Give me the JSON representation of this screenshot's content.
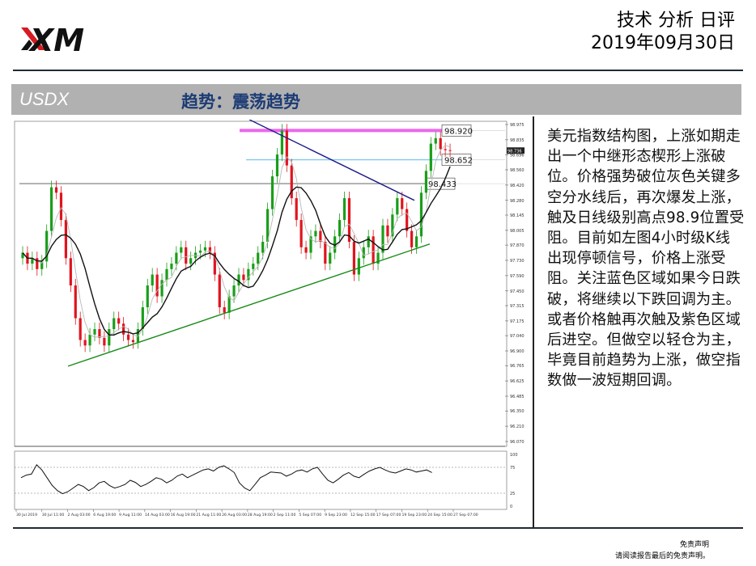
{
  "header": {
    "logo_text": "XM",
    "title": "技术 分析 日评",
    "date": "2019年09月30日"
  },
  "banner": {
    "symbol": "USDX",
    "trend": "趋势：震荡趋势"
  },
  "commentary": "美元指数结构图，上涨如期走出一个中继形态楔形上涨破位。价格强势破位灰色关键多空分水线后，再次爆发上涨，触及日线级别高点98.9位置受阻。目前如左图4小时级K线出现停顿信号，价格上涨受阻。关注蓝色区域如果今日跌破，将继续以下跌回调为主。或者价格触再次触及紫色区域后进空。但做空以轻仓为主，毕竟目前趋势为上涨，做空指数做一波短期回调。",
  "footer": {
    "disclaimer_title": "免责声明",
    "disclaimer_text": "请阅读报告最后的免责声明。"
  },
  "colors": {
    "bull": "#1a9e1a",
    "bear": "#e0141e",
    "trend_green": "#188a18",
    "trend_navy": "#1a1a8a",
    "resistance_magenta": "#ee66ee",
    "support_blue": "#7ec8ee",
    "key_gray": "#9a9a9a",
    "ma_black": "#111111",
    "banner_text": "#1d3c74"
  },
  "chart_data": {
    "type": "candlestick",
    "instrument": "USDX",
    "timeframe": "H4",
    "price_axis_ticks": [
      "98.975",
      "98.835",
      "98.696",
      "98.560",
      "98.420",
      "98.280",
      "98.145",
      "98.005",
      "97.870",
      "97.730",
      "97.590",
      "97.450",
      "97.315",
      "97.175",
      "97.040",
      "96.900",
      "96.765",
      "96.625",
      "96.485",
      "96.350",
      "96.210",
      "96.070"
    ],
    "ylim": [
      96.07,
      98.975
    ],
    "current_price_label": "98.736",
    "date_labels": [
      "30 Jul 2019",
      "30 Jul 11:00",
      "2 Aug 03:00",
      "6 Aug 19:00",
      "9 Aug 11:00",
      "14 Aug 03:00",
      "16 Aug 19:00",
      "21 Aug 11:00",
      "26 Aug 03:00",
      "28 Aug 19:00",
      "2 Sep 11:00",
      "5 Sep 07:00",
      "9 Sep 23:00",
      "12 Sep 15:00",
      "17 Sep 07:00",
      "19 Sep 23:00",
      "24 Sep 15:00",
      "27 Sep 07:00"
    ],
    "level_lines": [
      {
        "label": "98.920",
        "value": 98.92,
        "color": "#ee66ee"
      },
      {
        "label": "98.652",
        "value": 98.652,
        "color": "#7ec8ee"
      },
      {
        "label": "98.433",
        "value": 98.433,
        "color": "#9a9a9a"
      }
    ],
    "closes": [
      97.8,
      97.7,
      97.75,
      97.65,
      97.72,
      98.0,
      98.4,
      98.35,
      98.1,
      97.75,
      97.5,
      97.2,
      97.0,
      96.95,
      97.05,
      97.1,
      97.02,
      96.95,
      97.1,
      97.2,
      97.15,
      97.05,
      97.0,
      96.98,
      97.1,
      97.3,
      97.5,
      97.6,
      97.4,
      97.55,
      97.65,
      97.7,
      97.8,
      97.85,
      97.7,
      97.75,
      97.8,
      97.82,
      97.85,
      97.8,
      97.6,
      97.3,
      97.25,
      97.4,
      97.5,
      97.6,
      97.55,
      97.65,
      97.7,
      97.8,
      97.9,
      98.2,
      98.5,
      98.7,
      98.92,
      98.6,
      98.3,
      98.1,
      97.85,
      97.8,
      97.95,
      98.0,
      97.9,
      97.7,
      97.8,
      97.95,
      98.1,
      98.3,
      97.9,
      97.6,
      97.75,
      97.85,
      97.95,
      97.7,
      97.8,
      98.05,
      97.95,
      98.15,
      98.3,
      98.2,
      98.0,
      97.85,
      97.95,
      98.35,
      98.55,
      98.8,
      98.85,
      98.75,
      98.74,
      98.736
    ],
    "oscillator": {
      "scale_labels": [
        "100",
        "75",
        "25",
        "0"
      ],
      "values": [
        55,
        60,
        62,
        80,
        70,
        55,
        40,
        30,
        24,
        28,
        35,
        42,
        38,
        30,
        36,
        45,
        48,
        40,
        35,
        38,
        42,
        50,
        46,
        38,
        42,
        48,
        55,
        52,
        45,
        50,
        58,
        62,
        55,
        60,
        65,
        70,
        72,
        68,
        75,
        78,
        72,
        65,
        45,
        35,
        30,
        42,
        55,
        60,
        66,
        65,
        64,
        58,
        62,
        68,
        70,
        66,
        72,
        75,
        62,
        50,
        45,
        52,
        60,
        65,
        58,
        55,
        62,
        68,
        72,
        75,
        70,
        66,
        64,
        68,
        72,
        70,
        66,
        68,
        70,
        65
      ]
    }
  }
}
